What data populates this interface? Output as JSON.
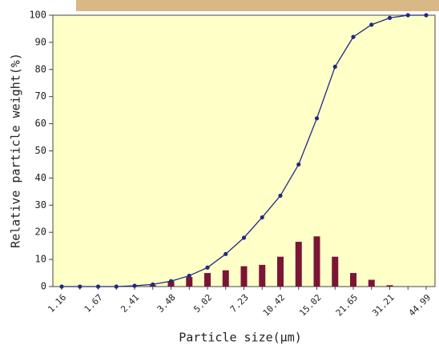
{
  "chart_data": {
    "type": "bar-line",
    "x_label": "Particle size(μm)",
    "y_label": "Relative particle weight(%)",
    "categories": [
      "1.16",
      null,
      "1.67",
      null,
      "2.41",
      null,
      "3.48",
      null,
      "5.02",
      null,
      "7.23",
      null,
      "10.42",
      null,
      "15.02",
      null,
      "21.65",
      null,
      "31.21",
      null,
      "44.99"
    ],
    "series": [
      {
        "type": "bar",
        "color": "#7b1535",
        "values": [
          0,
          0,
          0,
          0,
          0,
          0.5,
          2,
          3.5,
          5,
          6,
          7.5,
          8,
          11,
          16.5,
          18.5,
          11,
          5,
          2.5,
          0.5,
          0,
          0
        ]
      },
      {
        "type": "line",
        "color": "#1f2a80",
        "values": [
          0,
          0,
          0,
          0,
          0.3,
          0.8,
          2,
          4,
          7,
          12,
          18,
          25.5,
          33.5,
          45,
          62,
          81,
          92,
          96.5,
          99,
          100,
          100
        ]
      }
    ],
    "ylim": [
      0,
      100
    ],
    "yticks": [
      0,
      10,
      20,
      30,
      40,
      50,
      60,
      70,
      80,
      90,
      100
    ]
  }
}
